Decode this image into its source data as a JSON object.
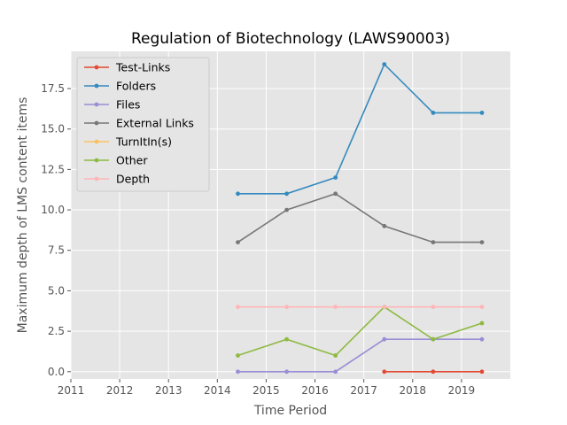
{
  "chart_data": {
    "type": "line",
    "title": "Regulation of Biotechnology (LAWS90003)",
    "xlabel": "Time Period",
    "ylabel": "Maximum depth of LMS content items",
    "xlim": [
      2011,
      2020.0
    ],
    "ylim": [
      -0.45,
      19.8
    ],
    "xticks": [
      2011,
      2012,
      2013,
      2014,
      2015,
      2016,
      2017,
      2018,
      2019
    ],
    "yticks": [
      0.0,
      2.5,
      5.0,
      7.5,
      10.0,
      12.5,
      15.0,
      17.5
    ],
    "x": [
      2014.42,
      2015.42,
      2016.42,
      2017.42,
      2018.42,
      2019.42
    ],
    "grid": true,
    "legend_position": "top-left",
    "series": [
      {
        "name": "Test-Links",
        "color": "#e24a33",
        "values": [
          null,
          null,
          null,
          0,
          0,
          0
        ]
      },
      {
        "name": "Folders",
        "color": "#348abd",
        "values": [
          11,
          11,
          12,
          19,
          16,
          16
        ]
      },
      {
        "name": "Files",
        "color": "#988ed5",
        "values": [
          0,
          0,
          0,
          2,
          2,
          2
        ]
      },
      {
        "name": "External Links",
        "color": "#777777",
        "values": [
          8,
          10,
          11,
          9,
          8,
          8
        ]
      },
      {
        "name": "TurnItIn(s)",
        "color": "#fbc15e",
        "values": [
          null,
          null,
          null,
          null,
          null,
          null
        ]
      },
      {
        "name": "Other",
        "color": "#8eba42",
        "values": [
          1,
          2,
          1,
          4,
          2,
          3
        ]
      },
      {
        "name": "Depth",
        "color": "#ffb5b8",
        "values": [
          4,
          4,
          4,
          4,
          4,
          4
        ]
      }
    ]
  }
}
